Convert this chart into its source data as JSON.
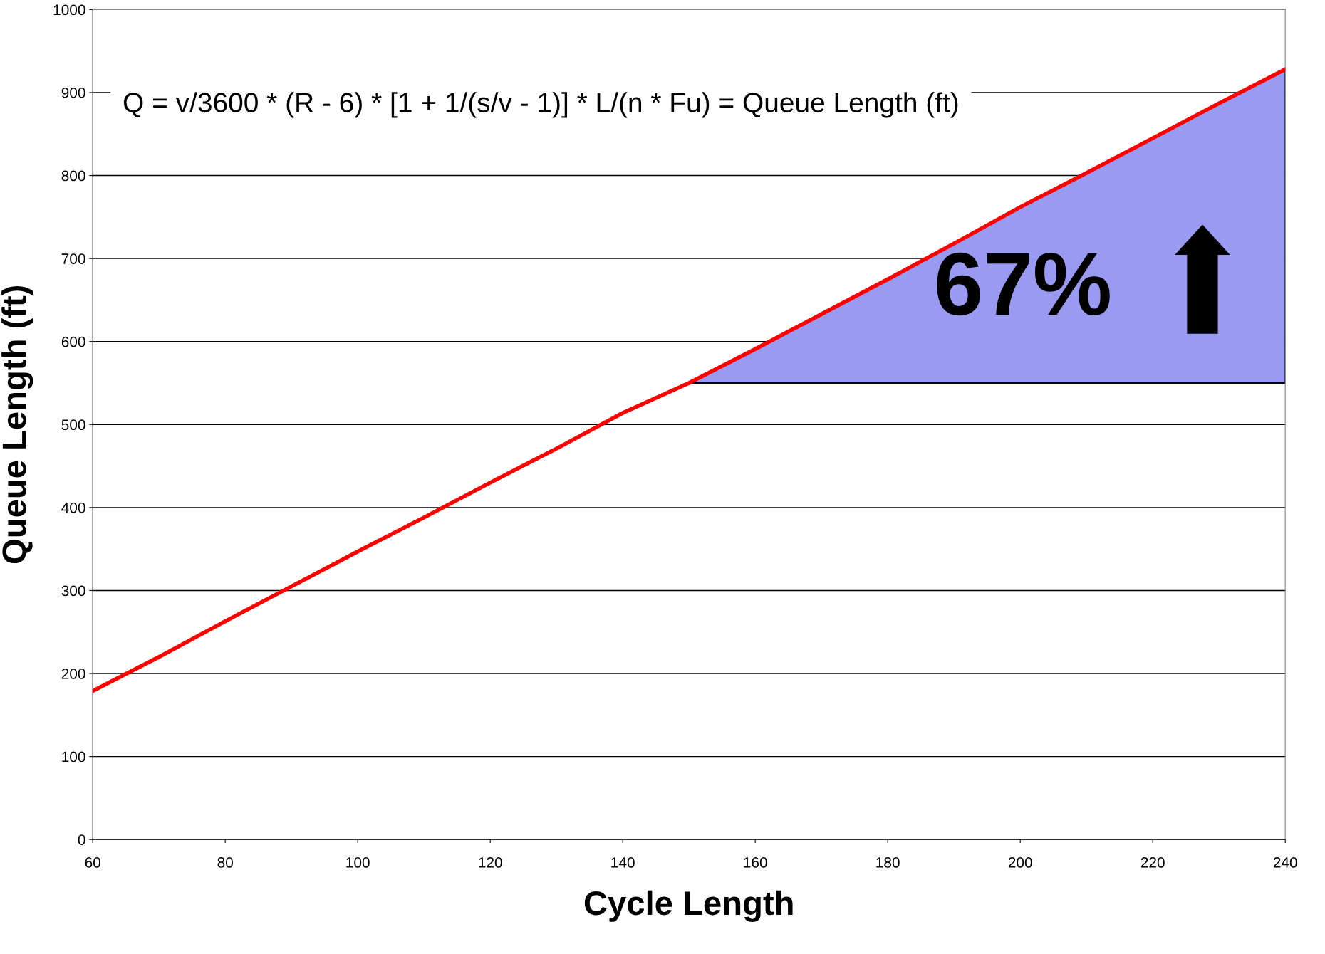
{
  "chart_data": {
    "type": "line",
    "xlabel": "Cycle Length",
    "ylabel": "Queue Length (ft)",
    "xlim": [
      60,
      240
    ],
    "xticks": [
      60,
      80,
      100,
      120,
      140,
      160,
      180,
      200,
      220,
      240
    ],
    "ylim": [
      0,
      1000
    ],
    "yticks": [
      0,
      100,
      200,
      300,
      400,
      500,
      600,
      700,
      800,
      900,
      1000
    ],
    "grid": "y",
    "legend": false,
    "marker": "none",
    "line_style": "solid",
    "series": [
      {
        "color": "#ff0000",
        "x": [
          60,
          70,
          80,
          90,
          100,
          110,
          120,
          130,
          140,
          150,
          160,
          170,
          180,
          190,
          200,
          210,
          220,
          230,
          240
        ],
        "values": [
          179,
          220,
          263,
          305,
          347,
          388,
          430,
          471,
          514,
          550,
          591,
          633,
          675,
          718,
          762,
          803,
          845,
          887,
          928
        ],
        "lower": [
          null,
          null,
          null,
          null,
          null,
          null,
          null,
          null,
          null,
          550,
          550,
          550,
          550,
          550,
          550,
          550,
          550,
          550,
          550
        ],
        "upper": [
          null,
          null,
          null,
          null,
          null,
          null,
          null,
          null,
          null,
          550,
          591,
          633,
          675,
          718,
          762,
          803,
          845,
          887,
          928
        ]
      }
    ],
    "annotations": [
      "Q = v/3600 * (R - 6) * [1 + 1/(s/v - 1)] * L/(n * Fu) = Queue Length (ft)",
      "67%"
    ]
  }
}
